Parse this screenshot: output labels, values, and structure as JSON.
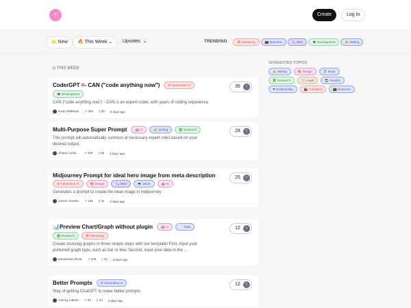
{
  "header": {
    "create": "Create",
    "login": "Log In"
  },
  "filters": {
    "new": "⭐ New",
    "this_week": "🔥 This Week",
    "sort": "Upvotes",
    "trending_label": "TRENDING"
  },
  "trending": [
    {
      "label": "🔥 Marketing",
      "color": "red"
    },
    {
      "label": "💼 Business",
      "color": "blue"
    },
    {
      "label": "🔍 SEO",
      "color": "purple"
    },
    {
      "label": "💻 Development",
      "color": "green"
    },
    {
      "label": "✍ Writing",
      "color": "blue"
    }
  ],
  "section_label": "THIS WEEK",
  "suggested_label": "SUGGESTED TOPICS",
  "suggested": [
    {
      "label": "✍ Writing",
      "color": "blue"
    },
    {
      "label": "🎨 Design",
      "color": "pink"
    },
    {
      "label": "🎵 Music",
      "color": "blue"
    },
    {
      "label": "📗 Research",
      "color": "green"
    },
    {
      "label": "📜 Legal",
      "color": "tan"
    },
    {
      "label": "🧙 Fantasy",
      "color": "blue"
    },
    {
      "label": "❤ Relationship",
      "color": "blue"
    },
    {
      "label": "🎬 Animation",
      "color": "red"
    },
    {
      "label": "💼 Business",
      "color": "blue"
    }
  ],
  "posts": [
    {
      "title": "CoderGPT =- CAN (\"code anything now\")",
      "tags": [
        {
          "label": "⚙ Generative AI",
          "color": "red"
        },
        {
          "label": "💻 Development",
          "color": "green"
        }
      ],
      "desc": "CAN (\"code anything now\") - CAN is an expert coder, with years of coding experience",
      "author": "Kody Wildfeuer",
      "views": "382",
      "saves": "82",
      "time": "5 days ago",
      "votes": "36"
    },
    {
      "title": "Multi-Purpose Super Prompt",
      "tags": [
        {
          "label": "🤖 AI",
          "color": "pink"
        },
        {
          "label": "✍ Writing",
          "color": "blue"
        },
        {
          "label": "📗 Research",
          "color": "green"
        }
      ],
      "desc": "This prompt will automatically summon al necessary expert roles based on your desired output.",
      "author": "Chase Curtis...",
      "views": "309",
      "saves": "55",
      "time": "4 days ago",
      "votes": "28"
    },
    {
      "title": "Midjourney Prompt for ideal hero image from meta description",
      "tags": [
        {
          "label": "⚙ Generative AI",
          "color": "red"
        },
        {
          "label": "🎨 Design",
          "color": "pink"
        },
        {
          "label": "🔍 SEO",
          "color": "purple"
        },
        {
          "label": "💻 UI/UX",
          "color": "blue"
        },
        {
          "label": "🤖 AI",
          "color": "pink"
        }
      ],
      "desc": "Generates a prompt to create the ideal image in midjourney",
      "author": "James Vroeker",
      "views": "165",
      "saves": "31",
      "time": "5 days ago",
      "votes": "25"
    },
    {
      "title": "📊Preview Chart/Graph without plugin",
      "tags": [
        {
          "label": "🤖 AI",
          "color": "pink"
        },
        {
          "label": "📈 Data",
          "color": "blue"
        },
        {
          "label": "📗 Research",
          "color": "green"
        },
        {
          "label": "🔥 Marketing",
          "color": "red"
        }
      ],
      "desc": "Create stunning graphs in three simple steps with our template! First, input your preferred graph type, such as bar or line. Second, input your data in the ...",
      "author": "Kawamura Shota",
      "views": "109",
      "saves": "11",
      "time": "3 days ago",
      "votes": "12"
    },
    {
      "title": "Better Prompts",
      "tags": [
        {
          "label": "⚙ Generative AI",
          "color": "blue"
        }
      ],
      "desc": "Way of getting ChatGPT to make better prompts",
      "author": "Johnny roberts",
      "views": "84",
      "saves": "13",
      "time": "3 days ago",
      "votes": "12"
    }
  ]
}
